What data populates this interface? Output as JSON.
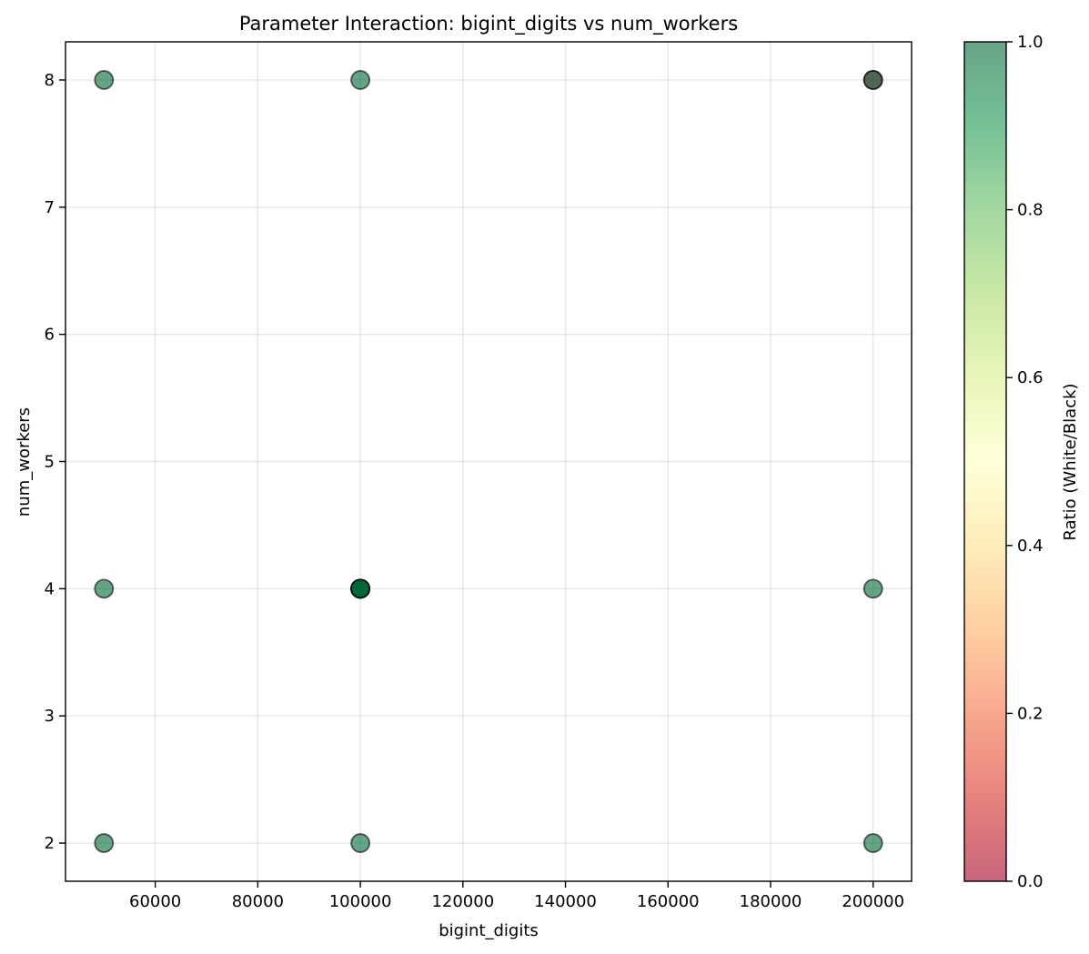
{
  "chart_data": {
    "type": "scatter",
    "title": "Parameter Interaction: bigint_digits vs num_workers",
    "xlabel": "bigint_digits",
    "ylabel": "num_workers",
    "xlim": [
      42500,
      207500
    ],
    "ylim": [
      1.7,
      8.3
    ],
    "xticks": [
      60000,
      80000,
      100000,
      120000,
      140000,
      160000,
      180000,
      200000
    ],
    "yticks": [
      2,
      3,
      4,
      5,
      6,
      7,
      8
    ],
    "grid": true,
    "points": [
      {
        "x": 50000,
        "y": 8,
        "ratio": 1.0
      },
      {
        "x": 100000,
        "y": 8,
        "ratio": 1.0
      },
      {
        "x": 200000,
        "y": 8,
        "ratio": 0.0
      },
      {
        "x": 200000,
        "y": 8,
        "ratio": 1.0
      },
      {
        "x": 50000,
        "y": 4,
        "ratio": 1.0
      },
      {
        "x": 100000,
        "y": 4,
        "ratio": 1.0
      },
      {
        "x": 100000,
        "y": 4,
        "ratio": 1.0
      },
      {
        "x": 100000,
        "y": 4,
        "ratio": 1.0
      },
      {
        "x": 100000,
        "y": 4,
        "ratio": 1.0
      },
      {
        "x": 100000,
        "y": 4,
        "ratio": 1.0
      },
      {
        "x": 100000,
        "y": 4,
        "ratio": 1.0
      },
      {
        "x": 200000,
        "y": 4,
        "ratio": 1.0
      },
      {
        "x": 50000,
        "y": 2,
        "ratio": 1.0
      },
      {
        "x": 100000,
        "y": 2,
        "ratio": 1.0
      },
      {
        "x": 200000,
        "y": 2,
        "ratio": 1.0
      }
    ],
    "colorbar": {
      "label": "Ratio (White/Black)",
      "range": [
        0.0,
        1.0
      ],
      "ticks": [
        "0.0",
        "0.2",
        "0.4",
        "0.6",
        "0.8",
        "1.0"
      ],
      "colormap": "RdYlGn",
      "stops": [
        "#a50026",
        "#d73027",
        "#f46d43",
        "#fdae61",
        "#fee08b",
        "#ffffbf",
        "#d9ef8b",
        "#a6d96a",
        "#66bd63",
        "#1a9850",
        "#006837"
      ]
    },
    "marker": {
      "alpha": 0.6,
      "edge_color": "#000000"
    }
  }
}
